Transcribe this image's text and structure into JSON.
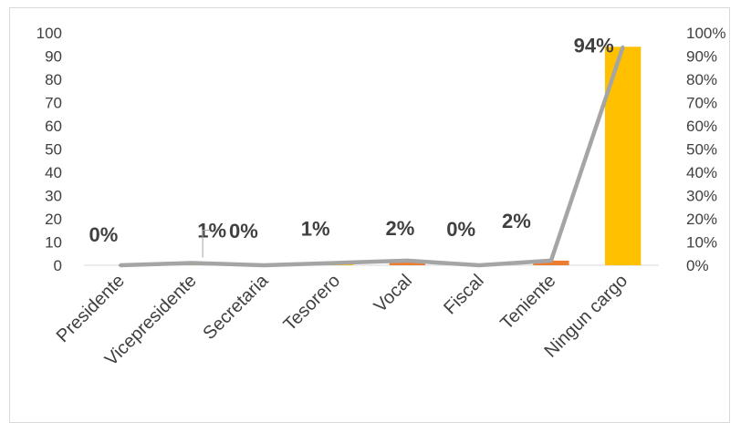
{
  "chart_data": {
    "type": "bar",
    "categories": [
      "Presidente",
      "Vicepresidente",
      "Secretaria",
      "Tesorero",
      "Vocal",
      "Fiscal",
      "Teniente",
      "Ningun cargo"
    ],
    "series": [
      {
        "type": "bar",
        "values": [
          0,
          1,
          0,
          1,
          2,
          0,
          2,
          94
        ],
        "colors": [
          "#ffc000",
          "#ffc000",
          "#ffc000",
          "#ffc000",
          "#ed7d31",
          "#ffc000",
          "#ed7d31",
          "#ffc000"
        ]
      },
      {
        "type": "line",
        "axis": "right",
        "values": [
          0,
          1,
          0,
          1,
          2,
          0,
          2,
          94
        ],
        "color": "#a5a5a5"
      }
    ],
    "data_labels": [
      "0%",
      "1%",
      "0%",
      "1%",
      "2%",
      "0%",
      "2%",
      "94%"
    ],
    "y_left": {
      "min": 0,
      "max": 100,
      "step": 10,
      "ticks": [
        "0",
        "10",
        "20",
        "30",
        "40",
        "50",
        "60",
        "70",
        "80",
        "90",
        "100"
      ]
    },
    "y_right": {
      "min": 0,
      "max": 100,
      "step": 10,
      "ticks": [
        "0%",
        "10%",
        "20%",
        "30%",
        "40%",
        "50%",
        "60%",
        "70%",
        "80%",
        "90%",
        "100%"
      ]
    },
    "grid": false,
    "legend": "none"
  }
}
